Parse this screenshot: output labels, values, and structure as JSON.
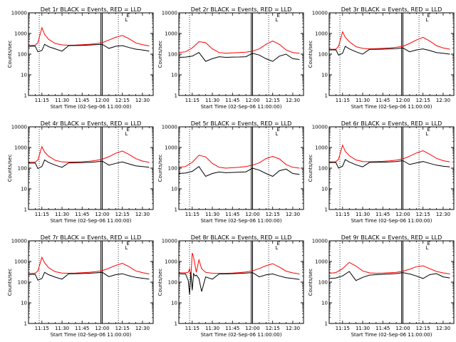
{
  "figure": {
    "background": "#ffffff",
    "colors": {
      "events": "#000000",
      "lld": "#ff0000",
      "axes": "#000000"
    }
  },
  "common": {
    "ylabel": "Counts/sec",
    "xlabel": "Start Time (02-Sep-06 11:00:00)",
    "xtick_labels": [
      "11:15",
      "11:30",
      "11:45",
      "12:00",
      "12:15",
      "12:30"
    ],
    "ytick_labels": [
      "1",
      "10",
      "100",
      "1000",
      "10000"
    ],
    "legend_glyphs": [
      "E",
      "L"
    ]
  },
  "chart_data": [
    {
      "type": "line",
      "title": "Det 1r BLACK = Events, RED = LLD",
      "ylim": [
        1,
        10000
      ],
      "log_y": true,
      "xlim": [
        "11:05",
        "12:38"
      ],
      "x": [
        "11:05",
        "11:10",
        "11:12",
        "11:15",
        "11:17",
        "11:20",
        "11:25",
        "11:30",
        "11:35",
        "11:40",
        "11:45",
        "11:50",
        "11:55",
        "12:00",
        "12:05",
        "12:10",
        "12:15",
        "12:20",
        "12:25",
        "12:30",
        "12:35"
      ],
      "series": [
        {
          "name": "LLD",
          "color": "#ff0000",
          "values": [
            260,
            270,
            360,
            1900,
            900,
            520,
            330,
            280,
            270,
            275,
            285,
            300,
            320,
            360,
            480,
            650,
            800,
            560,
            350,
            290,
            250
          ]
        },
        {
          "name": "Events",
          "color": "#000000",
          "values": [
            240,
            245,
            130,
            150,
            300,
            230,
            180,
            140,
            260,
            262,
            265,
            275,
            285,
            300,
            190,
            240,
            260,
            210,
            175,
            160,
            140
          ]
        }
      ],
      "dotted_lines_x": [
        "11:13",
        "12:12"
      ],
      "double_lines_x": [
        "11:59",
        "12:00"
      ]
    },
    {
      "type": "line",
      "title": "Det 2r BLACK = Events, RED = LLD",
      "ylim": [
        1,
        10000
      ],
      "log_y": true,
      "xlim": [
        "11:05",
        "12:38"
      ],
      "x": [
        "11:05",
        "11:10",
        "11:15",
        "11:20",
        "11:25",
        "11:30",
        "11:35",
        "11:40",
        "11:45",
        "11:50",
        "11:55",
        "12:00",
        "12:05",
        "12:10",
        "12:15",
        "12:20",
        "12:25",
        "12:30",
        "12:35"
      ],
      "series": [
        {
          "name": "LLD",
          "color": "#ff0000",
          "values": [
            120,
            130,
            200,
            400,
            360,
            180,
            120,
            110,
            115,
            120,
            125,
            140,
            180,
            300,
            430,
            300,
            160,
            120,
            110
          ]
        },
        {
          "name": "Events",
          "color": "#000000",
          "values": [
            70,
            72,
            80,
            120,
            45,
            60,
            75,
            70,
            72,
            73,
            75,
            110,
            90,
            60,
            45,
            80,
            100,
            60,
            55
          ]
        }
      ],
      "dotted_lines_x": [
        "11:13",
        "12:12"
      ],
      "double_lines_x": [
        "11:59",
        "12:00"
      ]
    },
    {
      "type": "line",
      "title": "Det 3r BLACK = Events, RED = LLD",
      "ylim": [
        1,
        10000
      ],
      "log_y": true,
      "xlim": [
        "11:05",
        "12:38"
      ],
      "x": [
        "11:05",
        "11:10",
        "11:12",
        "11:15",
        "11:17",
        "11:20",
        "11:25",
        "11:30",
        "11:35",
        "11:40",
        "11:45",
        "11:50",
        "11:55",
        "12:00",
        "12:05",
        "12:10",
        "12:15",
        "12:20",
        "12:25",
        "12:30",
        "12:35"
      ],
      "series": [
        {
          "name": "LLD",
          "color": "#ff0000",
          "values": [
            170,
            175,
            240,
            1200,
            650,
            400,
            230,
            190,
            180,
            185,
            190,
            200,
            215,
            240,
            330,
            480,
            650,
            430,
            260,
            200,
            175
          ]
        },
        {
          "name": "Events",
          "color": "#000000",
          "values": [
            160,
            162,
            90,
            110,
            240,
            180,
            130,
            100,
            170,
            172,
            175,
            180,
            185,
            200,
            130,
            160,
            180,
            150,
            120,
            110,
            100
          ]
        }
      ],
      "dotted_lines_x": [
        "11:13",
        "12:12"
      ],
      "double_lines_x": [
        "11:59",
        "12:00"
      ]
    },
    {
      "type": "line",
      "title": "Det 4r BLACK = Events, RED = LLD",
      "ylim": [
        1,
        10000
      ],
      "log_y": true,
      "xlim": [
        "11:05",
        "12:38"
      ],
      "x": [
        "11:05",
        "11:10",
        "11:12",
        "11:15",
        "11:17",
        "11:20",
        "11:25",
        "11:30",
        "11:35",
        "11:40",
        "11:45",
        "11:50",
        "11:55",
        "12:00",
        "12:05",
        "12:10",
        "12:15",
        "12:20",
        "12:25",
        "12:30",
        "12:35"
      ],
      "series": [
        {
          "name": "LLD",
          "color": "#ff0000",
          "values": [
            190,
            195,
            250,
            1100,
            600,
            380,
            240,
            200,
            195,
            200,
            205,
            215,
            235,
            270,
            360,
            520,
            680,
            460,
            290,
            220,
            190
          ]
        },
        {
          "name": "Events",
          "color": "#000000",
          "values": [
            175,
            178,
            95,
            120,
            250,
            190,
            140,
            110,
            180,
            182,
            185,
            190,
            200,
            220,
            140,
            170,
            200,
            160,
            130,
            120,
            110
          ]
        }
      ],
      "dotted_lines_x": [
        "11:13",
        "12:12"
      ],
      "double_lines_x": [
        "11:59",
        "12:00"
      ]
    },
    {
      "type": "line",
      "title": "Det 5r BLACK = Events, RED = LLD",
      "ylim": [
        1,
        10000
      ],
      "log_y": true,
      "xlim": [
        "11:05",
        "12:38"
      ],
      "x": [
        "11:05",
        "11:10",
        "11:15",
        "11:20",
        "11:25",
        "11:30",
        "11:35",
        "11:40",
        "11:45",
        "11:50",
        "11:55",
        "12:00",
        "12:05",
        "12:10",
        "12:15",
        "12:20",
        "12:25",
        "12:30",
        "12:35"
      ],
      "series": [
        {
          "name": "LLD",
          "color": "#ff0000",
          "values": [
            110,
            120,
            190,
            420,
            350,
            170,
            110,
            100,
            105,
            110,
            120,
            140,
            180,
            290,
            370,
            280,
            150,
            110,
            100
          ]
        },
        {
          "name": "Events",
          "color": "#000000",
          "values": [
            55,
            58,
            70,
            120,
            40,
            55,
            65,
            60,
            62,
            64,
            66,
            100,
            80,
            55,
            40,
            75,
            90,
            55,
            50
          ]
        }
      ],
      "dotted_lines_x": [
        "11:13",
        "12:12"
      ],
      "double_lines_x": [
        "11:59",
        "12:00"
      ]
    },
    {
      "type": "line",
      "title": "Det 6r BLACK = Events, RED = LLD",
      "ylim": [
        1,
        10000
      ],
      "log_y": true,
      "xlim": [
        "11:05",
        "12:38"
      ],
      "x": [
        "11:05",
        "11:10",
        "11:12",
        "11:15",
        "11:17",
        "11:20",
        "11:25",
        "11:30",
        "11:35",
        "11:40",
        "11:45",
        "11:50",
        "11:55",
        "12:00",
        "12:05",
        "12:10",
        "12:15",
        "12:20",
        "12:25",
        "12:30",
        "12:35"
      ],
      "series": [
        {
          "name": "LLD",
          "color": "#ff0000",
          "values": [
            200,
            205,
            270,
            1300,
            650,
            400,
            250,
            210,
            205,
            210,
            215,
            225,
            245,
            280,
            380,
            540,
            700,
            470,
            300,
            230,
            200
          ]
        },
        {
          "name": "Events",
          "color": "#000000",
          "values": [
            185,
            188,
            100,
            125,
            260,
            200,
            145,
            115,
            190,
            192,
            195,
            200,
            210,
            230,
            150,
            180,
            210,
            170,
            140,
            125,
            115
          ]
        }
      ],
      "dotted_lines_x": [
        "11:13",
        "12:12"
      ],
      "double_lines_x": [
        "11:59",
        "12:00"
      ]
    },
    {
      "type": "line",
      "title": "Det 7r BLACK = Events, RED = LLD",
      "ylim": [
        1,
        10000
      ],
      "log_y": true,
      "xlim": [
        "11:05",
        "12:38"
      ],
      "x": [
        "11:05",
        "11:10",
        "11:12",
        "11:15",
        "11:17",
        "11:20",
        "11:25",
        "11:30",
        "11:35",
        "11:40",
        "11:45",
        "11:50",
        "11:55",
        "12:00",
        "12:05",
        "12:10",
        "12:15",
        "12:20",
        "12:25",
        "12:30",
        "12:35"
      ],
      "series": [
        {
          "name": "LLD",
          "color": "#ff0000",
          "values": [
            260,
            270,
            350,
            1600,
            850,
            500,
            320,
            275,
            270,
            275,
            285,
            300,
            320,
            360,
            470,
            640,
            820,
            560,
            350,
            290,
            250
          ]
        },
        {
          "name": "Events",
          "color": "#000000",
          "values": [
            235,
            240,
            125,
            150,
            300,
            230,
            175,
            140,
            255,
            258,
            262,
            270,
            280,
            300,
            185,
            230,
            255,
            205,
            170,
            155,
            140
          ]
        }
      ],
      "dotted_lines_x": [
        "11:13",
        "12:12"
      ],
      "double_lines_x": [
        "11:59",
        "12:00"
      ]
    },
    {
      "type": "line",
      "title": "Det 8r BLACK = Events, RED = LLD",
      "ylim": [
        1,
        10000
      ],
      "log_y": true,
      "xlim": [
        "11:05",
        "12:38"
      ],
      "x": [
        "11:05",
        "11:10",
        "11:12",
        "11:13",
        "11:14",
        "11:15",
        "11:16",
        "11:17",
        "11:18",
        "11:20",
        "11:22",
        "11:25",
        "11:30",
        "11:35",
        "11:40",
        "11:45",
        "11:50",
        "11:55",
        "12:00",
        "12:05",
        "12:10",
        "12:15",
        "12:20",
        "12:25",
        "12:30",
        "12:35"
      ],
      "series": [
        {
          "name": "LLD",
          "color": "#ff0000",
          "values": [
            280,
            285,
            300,
            450,
            180,
            2600,
            1600,
            700,
            300,
            1200,
            450,
            300,
            270,
            265,
            268,
            275,
            290,
            310,
            350,
            460,
            620,
            780,
            540,
            340,
            280,
            250
          ]
        },
        {
          "name": "Events",
          "color": "#000000",
          "values": [
            250,
            255,
            120,
            25,
            300,
            40,
            260,
            200,
            220,
            150,
            35,
            180,
            140,
            250,
            252,
            258,
            265,
            275,
            290,
            180,
            225,
            250,
            200,
            165,
            150,
            135
          ]
        }
      ],
      "dotted_lines_x": [
        "11:13",
        "12:12"
      ],
      "double_lines_x": [
        "11:59",
        "12:00"
      ]
    },
    {
      "type": "line",
      "title": "Det 9r BLACK = Events, RED = LLD",
      "ylim": [
        1,
        10000
      ],
      "log_y": true,
      "xlim": [
        "11:05",
        "12:38"
      ],
      "x": [
        "11:05",
        "11:10",
        "11:15",
        "11:20",
        "11:25",
        "11:30",
        "11:35",
        "11:40",
        "11:45",
        "11:50",
        "11:55",
        "12:00",
        "12:05",
        "12:10",
        "12:15",
        "12:20",
        "12:25",
        "12:30",
        "12:35"
      ],
      "series": [
        {
          "name": "LLD",
          "color": "#ff0000",
          "values": [
            270,
            290,
            450,
            900,
            600,
            350,
            280,
            270,
            275,
            285,
            300,
            340,
            420,
            560,
            620,
            450,
            330,
            280,
            250
          ]
        },
        {
          "name": "Events",
          "color": "#000000",
          "values": [
            150,
            160,
            200,
            330,
            120,
            170,
            220,
            230,
            240,
            250,
            260,
            290,
            250,
            200,
            150,
            230,
            260,
            180,
            160
          ]
        }
      ],
      "dotted_lines_x": [
        "11:13",
        "12:12"
      ],
      "double_lines_x": [
        "11:59",
        "12:00"
      ]
    }
  ]
}
